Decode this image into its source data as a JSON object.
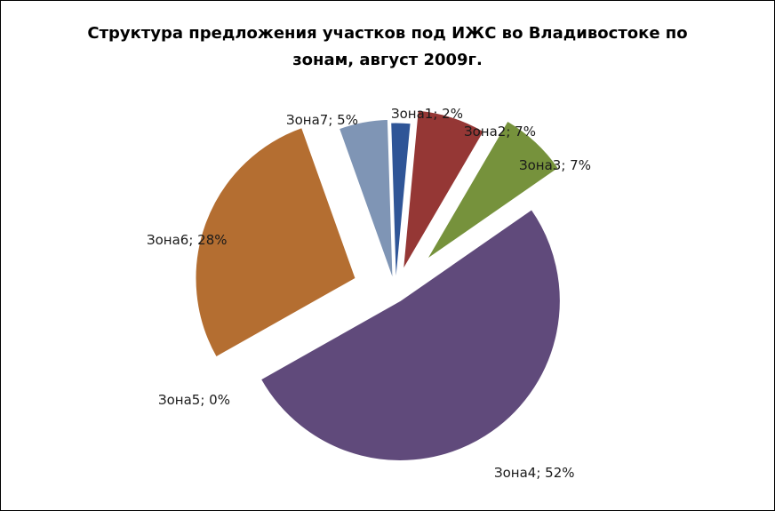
{
  "chart_data": {
    "type": "pie",
    "exploded": true,
    "title": "Структура предложения участков под ИЖС во Владивостоке по зонам, август 2009г.",
    "categories": [
      "Зона1",
      "Зона2",
      "Зона3",
      "Зона4",
      "Зона5",
      "Зона6",
      "Зона7"
    ],
    "values": [
      2,
      7,
      7,
      52,
      0,
      28,
      5
    ],
    "labels": [
      "Зона1; 2%",
      "Зона2; 7%",
      "Зона3; 7%",
      "Зона4; 52%",
      "Зона5; 0%",
      "Зона6; 28%",
      "Зона7; 5%"
    ],
    "colors": [
      "#2f5597",
      "#953735",
      "#76923c",
      "#604a7b",
      "#31859c",
      "#b46e31",
      "#7f95b5"
    ],
    "legend": "none"
  }
}
